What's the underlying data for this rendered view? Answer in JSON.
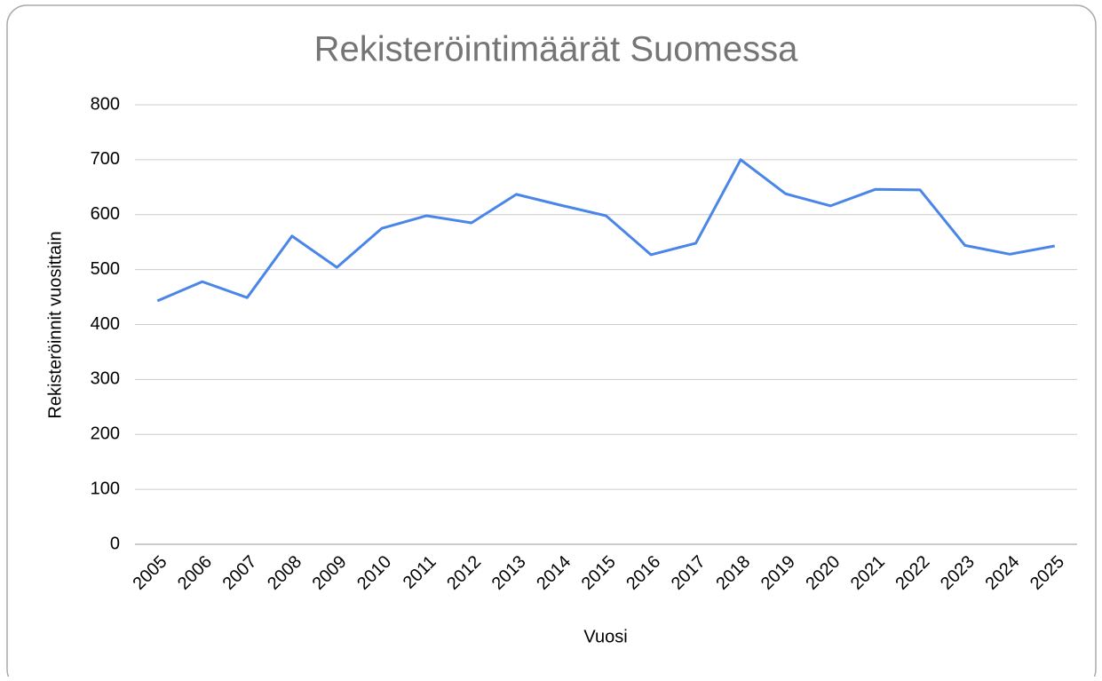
{
  "chart_data": {
    "type": "line",
    "title": "Rekisteröintimäärät Suomessa",
    "x_label": "Vuosi",
    "y_label": "Rekisteröinnit vuosittain",
    "categories": [
      "2005",
      "2006",
      "2007",
      "2008",
      "2009",
      "2010",
      "2011",
      "2012",
      "2013",
      "2014",
      "2015",
      "2016",
      "2017",
      "2018",
      "2019",
      "2020",
      "2021",
      "2022",
      "2023",
      "2024",
      "2025"
    ],
    "series": [
      {
        "name": "Rekisteröinnit vuosittain",
        "color": "#4a86e8",
        "values": [
          443,
          478,
          449,
          561,
          504,
          575,
          598,
          585,
          637,
          617,
          598,
          527,
          548,
          700,
          638,
          616,
          646,
          645,
          544,
          528,
          543
        ]
      }
    ],
    "ylim": [
      0,
      800
    ],
    "yticks": [
      0,
      100,
      200,
      300,
      400,
      500,
      600,
      700,
      800
    ],
    "grid": true
  }
}
